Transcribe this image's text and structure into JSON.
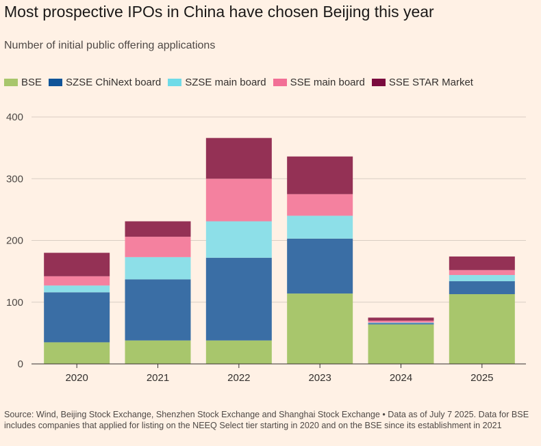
{
  "chart_data": {
    "type": "bar",
    "stacked": true,
    "title": "Most prospective IPOs in China have chosen Beijing this year",
    "subtitle": "Number of initial public offering applications",
    "categories": [
      "2020",
      "2021",
      "2022",
      "2023",
      "2024",
      "2025"
    ],
    "series": [
      {
        "name": "BSE",
        "color": "#a8c66c",
        "values": [
          35,
          38,
          38,
          114,
          64,
          113
        ]
      },
      {
        "name": "SZSE ChiNext board",
        "color": "#3a6ea5",
        "values": [
          81,
          99,
          134,
          89,
          2,
          21
        ]
      },
      {
        "name": "SZSE main board",
        "color": "#8ddfe8",
        "values": [
          11,
          36,
          59,
          37,
          1,
          10
        ]
      },
      {
        "name": "SSE main board",
        "color": "#f4819f",
        "values": [
          15,
          33,
          69,
          35,
          3,
          8
        ]
      },
      {
        "name": "SSE STAR Market",
        "color": "#943155",
        "values": [
          38,
          25,
          66,
          61,
          5,
          22
        ]
      }
    ],
    "legend_colors": [
      "#a8c66c",
      "#0f5499",
      "#6fdbe8",
      "#f26f96",
      "#7a0b3e"
    ],
    "ylim": [
      0,
      400
    ],
    "yticks": [
      "0",
      "100",
      "200",
      "300",
      "400"
    ],
    "ytick_values": [
      0,
      100,
      200,
      300,
      400
    ],
    "grid": true,
    "legend_position": "top-left",
    "source": "Source: Wind, Beijing Stock Exchange, Shenzhen Stock Exchange and Shanghai Stock Exchange • Data as of July 7 2025. Data for BSE includes companies that applied for listing on the NEEQ Select tier starting in 2020 and on the BSE since its establishment in 2021"
  }
}
